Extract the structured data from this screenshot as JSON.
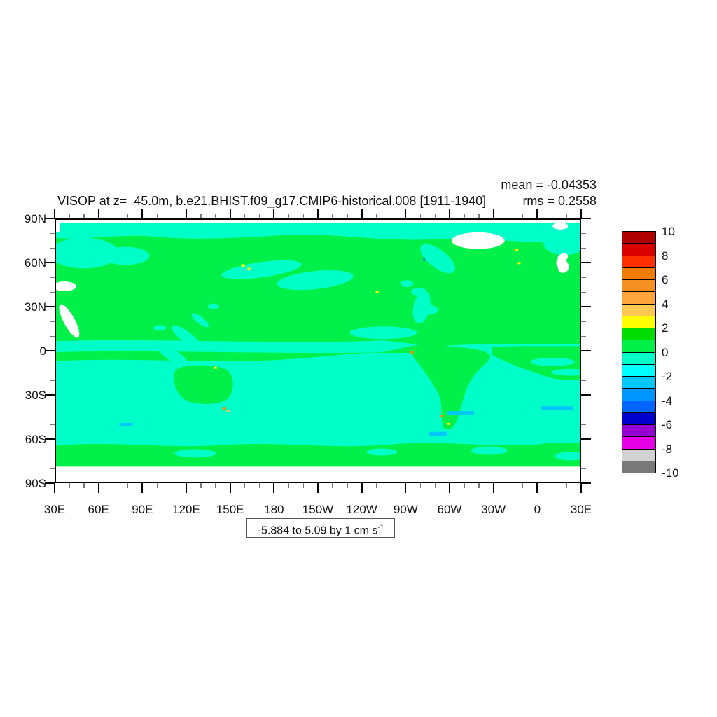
{
  "page": {
    "background": "#ffffff"
  },
  "title": {
    "text": "VISOP at z=  45.0m, b.e21.BHIST.f09_g17.CMIP6-historical.008 [1911-1940]"
  },
  "stats": {
    "mean": "mean = -0.04353",
    "rms": "rms = 0.2558"
  },
  "range_label": {
    "text": "-5.884 to 5.09 by 1 cm s",
    "sup": "-1"
  },
  "axes": {
    "lon_labels": [
      "30E",
      "60E",
      "90E",
      "120E",
      "150E",
      "180",
      "150W",
      "120W",
      "90W",
      "60W",
      "30W",
      "0",
      "30E"
    ],
    "lat_labels": [
      "90N",
      "60N",
      "30N",
      "0",
      "30S",
      "60S",
      "90S"
    ],
    "minor_ticks_per_interval": 2
  },
  "colorbar": {
    "tick_labels": [
      "10",
      "8",
      "6",
      "4",
      "2",
      "0",
      "-2",
      "-4",
      "-6",
      "-8",
      "-10"
    ],
    "colors_top_to_bottom": [
      "#AF0000",
      "#DB0000",
      "#FF3000",
      "#F27C00",
      "#F79022",
      "#FFA53C",
      "#FFC850",
      "#FFFF00",
      "#00DC00",
      "#00F04A",
      "#00FFC8",
      "#00FFFF",
      "#00C8FF",
      "#0096FF",
      "#0064FF",
      "#0000CD",
      "#9400D3",
      "#E600E6",
      "#D2D2D2",
      "#787878"
    ]
  },
  "map_colors": {
    "positive_0_1_green": "#00F04A",
    "negative_0_1_mint": "#00FFC8",
    "light_blue_speck": "#00C8FF",
    "speck_yellow": "#FFFF00",
    "speck_orange": "#FF8C00",
    "speck_gold": "#FFC83C",
    "speck_blue": "#0064FF",
    "missing_white": "#FFFFFF"
  },
  "chart_data": {
    "type": "heatmap",
    "subtype": "filled-contour-latlon-map",
    "title": "VISOP at z=  45.0m, b.e21.BHIST.f09_g17.CMIP6-historical.008 [1911-1940]",
    "variable": "VISOP",
    "depth_m": 45.0,
    "case": "b.e21.BHIST.f09_g17.CMIP6-historical.008",
    "period": "1911-1940",
    "mean": -0.04353,
    "rms": 0.2558,
    "field_min": -5.884,
    "field_max": 5.09,
    "contour_interval": 1,
    "units": "cm s-1",
    "x_axis": {
      "ticks": [
        "30E",
        "60E",
        "90E",
        "120E",
        "150E",
        "180",
        "150W",
        "120W",
        "90W",
        "60W",
        "30W",
        "0",
        "30E"
      ],
      "minor_every_deg": 10,
      "major_every_deg": 30
    },
    "y_axis": {
      "ticks": [
        "90N",
        "60N",
        "30N",
        "0",
        "30S",
        "60S",
        "90S"
      ],
      "minor_every_deg": 10,
      "major_every_deg": 30
    },
    "colorbar": {
      "levels_labeled": [
        10,
        8,
        6,
        4,
        2,
        0,
        -2,
        -4,
        -6,
        -8,
        -10
      ],
      "box_values_top_to_bottom": [
        [
          9,
          10
        ],
        [
          8,
          9
        ],
        [
          7,
          8
        ],
        [
          6,
          7
        ],
        [
          5,
          6
        ],
        [
          4,
          5
        ],
        [
          3,
          4
        ],
        [
          2,
          3
        ],
        [
          1,
          2
        ],
        [
          0,
          1
        ],
        [
          -1,
          0
        ],
        [
          -2,
          -1
        ],
        [
          -3,
          -2
        ],
        [
          -4,
          -3
        ],
        [
          -5,
          -4
        ],
        [
          -6,
          -5
        ],
        [
          -7,
          -6
        ],
        [
          -8,
          -7
        ],
        [
          -9,
          -8
        ],
        [
          -10,
          -9
        ]
      ],
      "colors_top_to_bottom": [
        "#AF0000",
        "#DB0000",
        "#FF3000",
        "#F27C00",
        "#F79022",
        "#FFA53C",
        "#FFC850",
        "#FFFF00",
        "#00DC00",
        "#00F04A",
        "#00FFC8",
        "#00FFFF",
        "#00C8FF",
        "#0096FF",
        "#0064FF",
        "#0000CD",
        "#9400D3",
        "#E600E6",
        "#D2D2D2",
        "#787878"
      ],
      "position": "right"
    },
    "description": "Global lat-lon field from ~85N to ~79S. Values almost everywhere between -1 and 1 cm/s: 0..1 rendered green, -1..0 rendered turquoise. Turquoise dominates high northern band (~75-82N), parts of the北 Pacific, the equatorial band and most of the southern hemisphere 15S-65S; green dominates elsewhere including an Antarctic coastal band. Sparse yellow/orange specks reach +2..+5 and small blue specks -2..-4. White = missing data: Greenland, Scandinavia, Caspian/Black Sea region.",
    "grid": false
  }
}
